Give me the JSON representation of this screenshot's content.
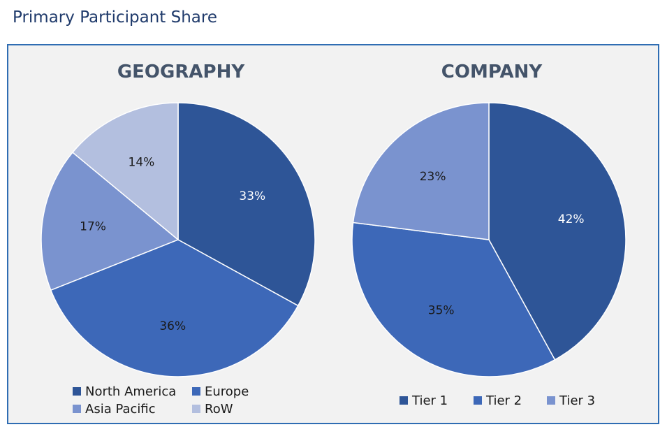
{
  "page": {
    "title": "Primary Participant Share"
  },
  "chart_data": [
    {
      "type": "pie",
      "title": "GEOGRAPHY",
      "categories": [
        "North America",
        "Europe",
        "Asia Pacific",
        "RoW"
      ],
      "values": [
        33,
        36,
        17,
        14
      ],
      "labels": [
        "33%",
        "36%",
        "17%",
        "14%"
      ],
      "colors": [
        "#2e5597",
        "#3d68b8",
        "#7a93cf",
        "#b3bfdf"
      ],
      "label_colors": [
        "#ffffff",
        "#1a1a1a",
        "#1a1a1a",
        "#1a1a1a"
      ],
      "legend": "bottom",
      "start_angle_deg": 0,
      "direction": "clockwise"
    },
    {
      "type": "pie",
      "title": "COMPANY",
      "categories": [
        "Tier 1",
        "Tier 2",
        "Tier 3"
      ],
      "values": [
        42,
        35,
        23
      ],
      "labels": [
        "42%",
        "35%",
        "23%"
      ],
      "colors": [
        "#2e5597",
        "#3d68b8",
        "#7a93cf"
      ],
      "label_colors": [
        "#ffffff",
        "#1a1a1a",
        "#1a1a1a"
      ],
      "legend": "bottom",
      "start_angle_deg": 0,
      "direction": "clockwise"
    }
  ]
}
